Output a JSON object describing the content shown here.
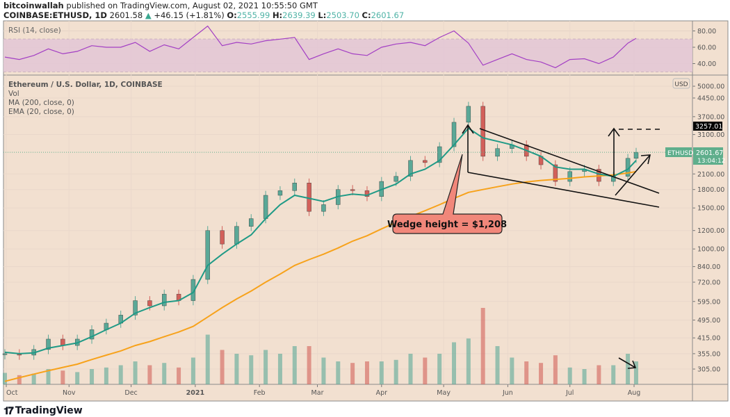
{
  "header": {
    "author": "bitcoinwallah",
    "published": " published on TradingView.com, August 02, 2021 10:55:50 GMT",
    "symbol": "COINBASE:ETHUSD, 1D",
    "last": "2601.58",
    "change": "+46.15 (+1.81%)",
    "o_label": "O:",
    "o": "2555.99",
    "h_label": "H:",
    "h": "2639.39",
    "l_label": "L:",
    "l": "2503.70",
    "c_label": "C:",
    "c": "2601.67"
  },
  "legend": {
    "rsi": "RSI (14, close)",
    "title": "Ethereum / U.S. Dollar, 1D, COINBASE",
    "vol": "Vol",
    "ma": "MA (200, close, 0)",
    "ema": "EMA (20, close, 0)"
  },
  "axis": {
    "currency": "USD",
    "rsi_ticks": [
      "80.00",
      "60.00",
      "40.00"
    ],
    "price_ticks": [
      "5000.00",
      "4450.00",
      "3700.00",
      "3100.00",
      "2100.00",
      "1800.00",
      "1500.00",
      "1200.00",
      "1000.00",
      "840.00",
      "720.00",
      "595.00",
      "495.00",
      "415.00",
      "355.00",
      "305.00"
    ],
    "months": [
      {
        "label": "Oct",
        "date": "2020-10-01"
      },
      {
        "label": "Nov",
        "date": "2020-11-01"
      },
      {
        "label": "Dec",
        "date": "2020-12-01"
      },
      {
        "label": "2021",
        "date": "2021-01-01"
      },
      {
        "label": "Feb",
        "date": "2021-02-01"
      },
      {
        "label": "Mar",
        "date": "2021-03-01"
      },
      {
        "label": "Apr",
        "date": "2021-04-01"
      },
      {
        "label": "May",
        "date": "2021-05-01"
      },
      {
        "label": "Jun",
        "date": "2021-06-01"
      },
      {
        "label": "Jul",
        "date": "2021-07-01"
      },
      {
        "label": "Aug",
        "date": "2021-08-01"
      }
    ]
  },
  "price_label": {
    "name": "ETHUSD",
    "value": "2601.67",
    "countdown": "13:04:12"
  },
  "target_label": "3257.01",
  "annotation": "Wedge height = $1,208",
  "brand": "TradingView",
  "colors": {
    "up": "#5aa897",
    "down": "#d2605a",
    "ema": "#1f9a86",
    "ma": "#f7a21b",
    "rsi": "#a33fc4",
    "rsi_band": "#e3c6d6",
    "bg": "#f2e0d0",
    "target_bg": "#000000",
    "price_bg": "#5fae8c"
  },
  "chart_data": {
    "type": "candlestick",
    "yscale": "log",
    "ylim": [
      280,
      5200
    ],
    "rsi_lim": [
      20,
      95
    ],
    "rsi_band": [
      30,
      70
    ],
    "grid": true,
    "dates": [
      "2020-10-01",
      "2020-10-08",
      "2020-10-15",
      "2020-10-22",
      "2020-10-29",
      "2020-11-05",
      "2020-11-12",
      "2020-11-19",
      "2020-11-26",
      "2020-12-03",
      "2020-12-10",
      "2020-12-17",
      "2020-12-24",
      "2020-12-31",
      "2021-01-07",
      "2021-01-14",
      "2021-01-21",
      "2021-01-28",
      "2021-02-04",
      "2021-02-11",
      "2021-02-18",
      "2021-02-25",
      "2021-03-04",
      "2021-03-11",
      "2021-03-18",
      "2021-03-25",
      "2021-04-01",
      "2021-04-08",
      "2021-04-15",
      "2021-04-22",
      "2021-04-29",
      "2021-05-06",
      "2021-05-13",
      "2021-05-20",
      "2021-05-27",
      "2021-06-03",
      "2021-06-10",
      "2021-06-17",
      "2021-06-24",
      "2021-07-01",
      "2021-07-08",
      "2021-07-15",
      "2021-07-22",
      "2021-07-29",
      "2021-08-02"
    ],
    "close": [
      355,
      350,
      370,
      410,
      385,
      410,
      450,
      480,
      520,
      600,
      570,
      640,
      600,
      740,
      1200,
      1050,
      1250,
      1350,
      1700,
      1780,
      1920,
      1450,
      1550,
      1800,
      1780,
      1680,
      1950,
      2050,
      2400,
      2350,
      2750,
      3500,
      4100,
      2500,
      2700,
      2800,
      2500,
      2300,
      1950,
      2150,
      2200,
      1950,
      2050,
      2450,
      2601.67
    ],
    "ema20": [
      360,
      355,
      358,
      375,
      385,
      395,
      420,
      450,
      480,
      530,
      560,
      590,
      600,
      650,
      850,
      950,
      1050,
      1150,
      1350,
      1550,
      1700,
      1650,
      1600,
      1680,
      1720,
      1700,
      1800,
      1900,
      2100,
      2200,
      2400,
      2800,
      3300,
      3000,
      2900,
      2800,
      2650,
      2500,
      2250,
      2200,
      2200,
      2100,
      2050,
      2200,
      2400
    ],
    "ma200": [
      270,
      280,
      290,
      300,
      310,
      320,
      335,
      350,
      365,
      385,
      400,
      420,
      440,
      465,
      510,
      560,
      610,
      660,
      720,
      780,
      850,
      900,
      950,
      1010,
      1080,
      1140,
      1220,
      1300,
      1380,
      1460,
      1550,
      1650,
      1750,
      1800,
      1850,
      1900,
      1940,
      1970,
      1990,
      2010,
      2040,
      2060,
      2080,
      2120,
      2150
    ],
    "rsi": [
      48,
      45,
      50,
      58,
      52,
      55,
      62,
      60,
      60,
      66,
      55,
      63,
      58,
      72,
      86,
      62,
      66,
      64,
      68,
      70,
      72,
      45,
      52,
      58,
      52,
      50,
      60,
      64,
      66,
      62,
      72,
      80,
      65,
      38,
      45,
      52,
      45,
      42,
      35,
      45,
      46,
      40,
      48,
      65,
      71
    ],
    "volume_relative": [
      15,
      12,
      14,
      20,
      18,
      16,
      20,
      22,
      25,
      30,
      25,
      28,
      22,
      35,
      65,
      45,
      40,
      38,
      45,
      40,
      50,
      50,
      35,
      30,
      28,
      30,
      30,
      32,
      40,
      35,
      40,
      55,
      60,
      100,
      50,
      35,
      30,
      28,
      38,
      22,
      20,
      25,
      25,
      40,
      30
    ],
    "target": 3257.01,
    "last": 2601.67
  }
}
